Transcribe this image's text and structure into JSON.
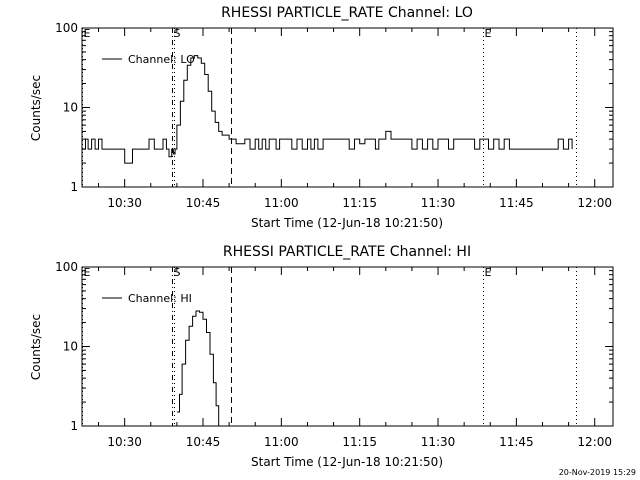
{
  "footer_timestamp": "20-Nov-2019 15:29",
  "chart_data": [
    {
      "type": "line",
      "title": "RHESSI PARTICLE_RATE Channel: LO",
      "xlabel": "Start Time (12-Jun-18 10:21:50)",
      "ylabel": "Counts/sec",
      "y_scale": "log",
      "xlim": [
        "10:21:50",
        "12:03:30"
      ],
      "ylim": [
        1,
        100
      ],
      "x_ticks": [
        "10:30",
        "10:45",
        "11:00",
        "11:15",
        "11:30",
        "11:45",
        "12:00"
      ],
      "y_ticks": [
        "1",
        "10",
        "100"
      ],
      "legend": {
        "entries": [
          "Channel: LO"
        ],
        "placement": "top-left"
      },
      "markers": [
        {
          "label": "E",
          "time": "10:21:50",
          "style": "dotted"
        },
        {
          "label": "S",
          "time": "10:39:00",
          "style": "dash-dot"
        },
        {
          "label": "",
          "time": "10:39:30",
          "style": "dotted"
        },
        {
          "label": "",
          "time": "10:50:20",
          "style": "dashed"
        },
        {
          "label": "E",
          "time": "11:38:40",
          "style": "dotted"
        },
        {
          "label": "",
          "time": "11:56:20",
          "style": "dotted"
        }
      ],
      "series": [
        {
          "x": [
            "10:21:50",
            "10:22:30",
            "10:23:00",
            "10:23:40",
            "10:24:20",
            "10:25:00",
            "10:25:40",
            "10:26:10",
            "10:27:00",
            "10:28:00",
            "10:29:00",
            "10:30:00",
            "10:31:30",
            "10:33:00",
            "10:34:00",
            "10:34:40",
            "10:35:40",
            "10:36:30",
            "10:37:20",
            "10:38:00",
            "10:38:30",
            "10:39:00",
            "10:39:20",
            "10:39:40",
            "10:40:00",
            "10:40:40",
            "10:41:20",
            "10:42:00",
            "10:42:40",
            "10:43:20",
            "10:44:00",
            "10:44:40",
            "10:45:20",
            "10:46:00",
            "10:46:40",
            "10:47:20",
            "10:48:00",
            "10:48:40",
            "10:49:20",
            "10:50:00",
            "10:50:40",
            "10:51:20",
            "10:53:00",
            "10:54:00",
            "10:55:00",
            "10:55:40",
            "10:56:20",
            "10:57:00",
            "10:57:40",
            "10:58:20",
            "10:59:00",
            "10:59:40",
            "11:00:20",
            "11:01:00",
            "11:02:00",
            "11:03:00",
            "11:04:00",
            "11:05:00",
            "11:05:40",
            "11:06:20",
            "11:07:00",
            "11:08:00",
            "11:09:00",
            "11:10:00",
            "11:11:00",
            "11:12:00",
            "11:13:00",
            "11:14:00",
            "11:15:00",
            "11:16:00",
            "11:17:00",
            "11:18:00",
            "11:18:40",
            "11:19:20",
            "11:20:00",
            "11:21:00",
            "11:22:00",
            "11:23:00",
            "11:24:00",
            "11:25:00",
            "11:26:00",
            "11:27:00",
            "11:28:00",
            "11:29:00",
            "11:30:00",
            "11:31:00",
            "11:32:00",
            "11:33:00",
            "11:34:00",
            "11:35:00",
            "11:36:00",
            "11:37:00",
            "11:38:00",
            "11:38:40",
            "11:39:40",
            "11:40:40",
            "11:41:40",
            "11:42:40",
            "11:43:40",
            "11:45:00",
            "11:46:00",
            "11:47:00",
            "11:48:00",
            "11:49:00",
            "11:50:00",
            "11:51:00",
            "11:52:00",
            "11:53:00",
            "11:54:00",
            "11:55:00",
            "11:55:40"
          ],
          "y": [
            3,
            4,
            3,
            4,
            3,
            4,
            3,
            3,
            3,
            3,
            3,
            2,
            3,
            3,
            3,
            4,
            3,
            3,
            4,
            3,
            2.4,
            3,
            2.6,
            3,
            6,
            12,
            22,
            34,
            42,
            45,
            42,
            36,
            26,
            16,
            9,
            6.5,
            5,
            4.5,
            4.5,
            4,
            4,
            3.5,
            4,
            3,
            4,
            3,
            4,
            3,
            4,
            4,
            3,
            4,
            4,
            4,
            3,
            4,
            3,
            4,
            3,
            4,
            3,
            4,
            4,
            4,
            4,
            4,
            3,
            4,
            3.5,
            4,
            4,
            3,
            4,
            4,
            5,
            4,
            4,
            4,
            4,
            3,
            4,
            3,
            4,
            3,
            4,
            4,
            3,
            4,
            4,
            4,
            4,
            3,
            4,
            4,
            3,
            4,
            3,
            4,
            3,
            3,
            3,
            3,
            3,
            3,
            3,
            3,
            3,
            4,
            3,
            4,
            3
          ]
        }
      ]
    },
    {
      "type": "line",
      "title": "RHESSI PARTICLE_RATE Channel: HI",
      "xlabel": "Start Time (12-Jun-18 10:21:50)",
      "ylabel": "Counts/sec",
      "y_scale": "log",
      "xlim": [
        "10:21:50",
        "12:03:30"
      ],
      "ylim": [
        1,
        100
      ],
      "x_ticks": [
        "10:30",
        "10:45",
        "11:00",
        "11:15",
        "11:30",
        "11:45",
        "12:00"
      ],
      "y_ticks": [
        "1",
        "10",
        "100"
      ],
      "legend": {
        "entries": [
          "Channel: HI"
        ],
        "placement": "top-left"
      },
      "markers": [
        {
          "label": "E",
          "time": "10:21:50",
          "style": "dotted"
        },
        {
          "label": "S",
          "time": "10:39:00",
          "style": "dash-dot"
        },
        {
          "label": "",
          "time": "10:39:30",
          "style": "dotted"
        },
        {
          "label": "",
          "time": "10:50:20",
          "style": "dashed"
        },
        {
          "label": "E",
          "time": "11:38:40",
          "style": "dotted"
        },
        {
          "label": "",
          "time": "11:56:20",
          "style": "dotted"
        }
      ],
      "series": [
        {
          "x": [
            "10:40:00",
            "10:40:30",
            "10:41:00",
            "10:41:40",
            "10:42:20",
            "10:43:00",
            "10:43:40",
            "10:44:20",
            "10:45:00",
            "10:45:40",
            "10:46:20",
            "10:47:00",
            "10:47:30",
            "10:48:00"
          ],
          "y": [
            1.5,
            2.5,
            6,
            12,
            18,
            24,
            28,
            27,
            22,
            15,
            8,
            3.5,
            1.8,
            1
          ]
        }
      ]
    }
  ]
}
